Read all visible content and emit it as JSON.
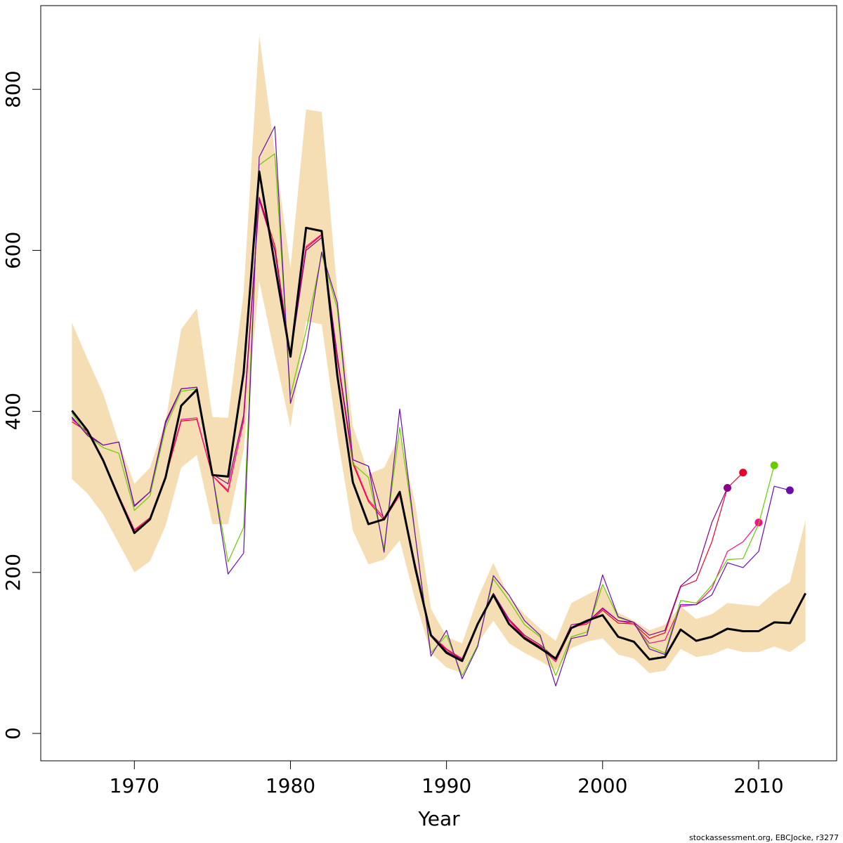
{
  "chart_data": {
    "type": "line",
    "title": "",
    "xlabel": "Year",
    "ylabel": "",
    "xlim": [
      1964,
      2015
    ],
    "ylim": [
      -34,
      904
    ],
    "x_ticks": [
      1970,
      1980,
      1990,
      2000,
      2010
    ],
    "y_ticks": [
      0,
      200,
      400,
      600,
      800
    ],
    "grid": false,
    "legend": "none",
    "credit": "stockassessment.org, EBCJocke, r3277",
    "band": {
      "color": "#f5deb3",
      "x": [
        1966,
        1967,
        1968,
        1969,
        1970,
        1971,
        1972,
        1973,
        1974,
        1975,
        1976,
        1977,
        1978,
        1979,
        1980,
        1981,
        1982,
        1983,
        1984,
        1985,
        1986,
        1987,
        1988,
        1989,
        1990,
        1991,
        1992,
        1993,
        1994,
        1995,
        1996,
        1997,
        1998,
        1999,
        2000,
        2001,
        2002,
        2003,
        2004,
        2005,
        2006,
        2007,
        2008,
        2009,
        2010,
        2011,
        2012,
        2013
      ],
      "upper": [
        510,
        465,
        422,
        362,
        310,
        330,
        388,
        502,
        528,
        393,
        392,
        548,
        867,
        722,
        578,
        775,
        772,
        548,
        382,
        322,
        330,
        370,
        285,
        155,
        120,
        112,
        168,
        212,
        170,
        148,
        130,
        115,
        162,
        172,
        182,
        150,
        140,
        128,
        135,
        158,
        142,
        148,
        162,
        160,
        158,
        175,
        188,
        265
      ],
      "lower": [
        316,
        298,
        272,
        236,
        200,
        214,
        258,
        330,
        346,
        260,
        260,
        352,
        562,
        470,
        380,
        512,
        508,
        370,
        252,
        210,
        216,
        240,
        165,
        100,
        82,
        75,
        112,
        140,
        112,
        100,
        90,
        78,
        106,
        114,
        118,
        98,
        93,
        75,
        78,
        105,
        95,
        98,
        106,
        101,
        101,
        108,
        101,
        115
      ]
    },
    "series": [
      {
        "color": "#000000",
        "width": 3,
        "points": [
          [
            1966,
            401
          ],
          [
            1967,
            376
          ],
          [
            1968,
            339
          ],
          [
            1969,
            293
          ],
          [
            1970,
            249
          ],
          [
            1971,
            266
          ],
          [
            1972,
            318
          ],
          [
            1973,
            407
          ],
          [
            1974,
            427
          ],
          [
            1975,
            321
          ],
          [
            1976,
            319
          ],
          [
            1977,
            448
          ],
          [
            1978,
            698
          ],
          [
            1979,
            582
          ],
          [
            1980,
            468
          ],
          [
            1981,
            628
          ],
          [
            1982,
            624
          ],
          [
            1983,
            445
          ],
          [
            1984,
            312
          ],
          [
            1985,
            260
          ],
          [
            1986,
            266
          ],
          [
            1987,
            300
          ],
          [
            1988,
            205
          ],
          [
            1989,
            122
          ],
          [
            1990,
            100
          ],
          [
            1991,
            90
          ],
          [
            1992,
            136
          ],
          [
            1993,
            172
          ],
          [
            1994,
            136
          ],
          [
            1995,
            118
          ],
          [
            1996,
            106
          ],
          [
            1997,
            93
          ],
          [
            1998,
            131
          ],
          [
            1999,
            140
          ],
          [
            2000,
            147
          ],
          [
            2001,
            120
          ],
          [
            2002,
            114
          ],
          [
            2003,
            92
          ],
          [
            2004,
            95
          ],
          [
            2005,
            129
          ],
          [
            2006,
            115
          ],
          [
            2007,
            120
          ],
          [
            2008,
            130
          ],
          [
            2009,
            127
          ],
          [
            2010,
            127
          ],
          [
            2011,
            138
          ],
          [
            2012,
            137
          ],
          [
            2013,
            174
          ]
        ]
      },
      {
        "color": "#e8002b",
        "width": 1.2,
        "points": [
          [
            1966,
            387
          ],
          [
            1967,
            375
          ],
          [
            1968,
            340
          ],
          [
            1969,
            295
          ],
          [
            1970,
            252
          ],
          [
            1971,
            266
          ],
          [
            1972,
            318
          ],
          [
            1973,
            388
          ],
          [
            1974,
            390
          ],
          [
            1975,
            320
          ],
          [
            1976,
            300
          ],
          [
            1977,
            390
          ],
          [
            1978,
            666
          ],
          [
            1979,
            606
          ],
          [
            1980,
            468
          ],
          [
            1981,
            603
          ],
          [
            1982,
            619
          ],
          [
            1983,
            465
          ],
          [
            1984,
            335
          ],
          [
            1985,
            288
          ],
          [
            1986,
            265
          ],
          [
            1987,
            296
          ],
          [
            1988,
            206
          ],
          [
            1989,
            122
          ],
          [
            1990,
            104
          ],
          [
            1991,
            92
          ],
          [
            1992,
            135
          ],
          [
            1993,
            172
          ],
          [
            1994,
            142
          ],
          [
            1995,
            120
          ],
          [
            1996,
            108
          ],
          [
            1997,
            91
          ],
          [
            1998,
            132
          ],
          [
            1999,
            136
          ],
          [
            2000,
            153
          ],
          [
            2001,
            137
          ],
          [
            2002,
            136
          ],
          [
            2003,
            118
          ],
          [
            2004,
            125
          ],
          [
            2005,
            182
          ],
          [
            2006,
            190
          ],
          [
            2007,
            238
          ],
          [
            2008,
            305
          ],
          [
            2009,
            324
          ]
        ],
        "endpoint": [
          2009,
          324
        ]
      },
      {
        "color": "#ff0a8a",
        "width": 1.2,
        "points": [
          [
            1966,
            390
          ],
          [
            1967,
            375
          ],
          [
            1968,
            340
          ],
          [
            1969,
            295
          ],
          [
            1970,
            253
          ],
          [
            1971,
            268
          ],
          [
            1972,
            320
          ],
          [
            1973,
            390
          ],
          [
            1974,
            392
          ],
          [
            1975,
            320
          ],
          [
            1976,
            302
          ],
          [
            1977,
            388
          ],
          [
            1978,
            662
          ],
          [
            1979,
            600
          ],
          [
            1980,
            470
          ],
          [
            1981,
            605
          ],
          [
            1982,
            620
          ],
          [
            1983,
            468
          ],
          [
            1984,
            338
          ],
          [
            1985,
            290
          ],
          [
            1986,
            268
          ],
          [
            1987,
            296
          ],
          [
            1988,
            208
          ],
          [
            1989,
            123
          ],
          [
            1990,
            105
          ],
          [
            1991,
            93
          ],
          [
            1992,
            136
          ],
          [
            1993,
            174
          ],
          [
            1994,
            140
          ],
          [
            1995,
            119
          ],
          [
            1996,
            107
          ],
          [
            1997,
            89
          ],
          [
            1998,
            130
          ],
          [
            1999,
            138
          ],
          [
            2000,
            156
          ],
          [
            2001,
            140
          ],
          [
            2002,
            136
          ],
          [
            2003,
            112
          ],
          [
            2004,
            116
          ],
          [
            2005,
            158
          ],
          [
            2006,
            160
          ],
          [
            2007,
            180
          ],
          [
            2008,
            226
          ],
          [
            2009,
            238
          ],
          [
            2010,
            262
          ]
        ],
        "endpoint": [
          2010,
          262
        ]
      },
      {
        "color": "#8b008b",
        "width": 1.2,
        "points": [
          [
            1966,
            392
          ],
          [
            1967,
            372
          ],
          [
            1968,
            358
          ],
          [
            1969,
            362
          ],
          [
            1970,
            283
          ],
          [
            1971,
            300
          ],
          [
            1972,
            388
          ],
          [
            1973,
            428
          ],
          [
            1974,
            430
          ],
          [
            1975,
            322
          ],
          [
            1976,
            310
          ],
          [
            1977,
            395
          ],
          [
            1978,
            665
          ],
          [
            1979,
            600
          ],
          [
            1980,
            468
          ],
          [
            1981,
            600
          ],
          [
            1982,
            616
          ],
          [
            1983,
            470
          ],
          [
            1984,
            340
          ],
          [
            1985,
            332
          ],
          [
            1986,
            265
          ],
          [
            1987,
            300
          ],
          [
            1988,
            210
          ],
          [
            1989,
            123
          ],
          [
            1990,
            102
          ],
          [
            1991,
            92
          ],
          [
            1992,
            136
          ],
          [
            1993,
            174
          ],
          [
            1994,
            142
          ],
          [
            1995,
            122
          ],
          [
            1996,
            110
          ],
          [
            1997,
            93
          ],
          [
            1998,
            135
          ],
          [
            1999,
            138
          ],
          [
            2000,
            155
          ],
          [
            2001,
            140
          ],
          [
            2002,
            138
          ],
          [
            2003,
            122
          ],
          [
            2004,
            128
          ],
          [
            2005,
            183
          ],
          [
            2006,
            200
          ],
          [
            2007,
            262
          ],
          [
            2008,
            305
          ]
        ],
        "endpoint": [
          2008,
          305
        ]
      },
      {
        "color": "#66cc00",
        "width": 1.2,
        "points": [
          [
            1966,
            398
          ],
          [
            1967,
            370
          ],
          [
            1968,
            355
          ],
          [
            1969,
            348
          ],
          [
            1970,
            277
          ],
          [
            1971,
            295
          ],
          [
            1972,
            380
          ],
          [
            1973,
            425
          ],
          [
            1974,
            428
          ],
          [
            1975,
            322
          ],
          [
            1976,
            213
          ],
          [
            1977,
            256
          ],
          [
            1978,
            706
          ],
          [
            1979,
            720
          ],
          [
            1980,
            420
          ],
          [
            1981,
            500
          ],
          [
            1982,
            595
          ],
          [
            1983,
            528
          ],
          [
            1984,
            335
          ],
          [
            1985,
            318
          ],
          [
            1986,
            230
          ],
          [
            1987,
            380
          ],
          [
            1988,
            245
          ],
          [
            1989,
            100
          ],
          [
            1990,
            122
          ],
          [
            1991,
            72
          ],
          [
            1992,
            110
          ],
          [
            1993,
            192
          ],
          [
            1994,
            165
          ],
          [
            1995,
            135
          ],
          [
            1996,
            120
          ],
          [
            1997,
            72
          ],
          [
            1998,
            120
          ],
          [
            1999,
            126
          ],
          [
            2000,
            185
          ],
          [
            2001,
            144
          ],
          [
            2002,
            138
          ],
          [
            2003,
            108
          ],
          [
            2004,
            100
          ],
          [
            2005,
            165
          ],
          [
            2006,
            162
          ],
          [
            2007,
            184
          ],
          [
            2008,
            216
          ],
          [
            2009,
            217
          ],
          [
            2010,
            260
          ],
          [
            2011,
            333
          ]
        ],
        "endpoint": [
          2011,
          333
        ]
      },
      {
        "color": "#6a0dad",
        "width": 1.2,
        "points": [
          [
            1966,
            393
          ],
          [
            1967,
            370
          ],
          [
            1968,
            358
          ],
          [
            1969,
            362
          ],
          [
            1970,
            282
          ],
          [
            1971,
            300
          ],
          [
            1972,
            385
          ],
          [
            1973,
            428
          ],
          [
            1974,
            430
          ],
          [
            1975,
            322
          ],
          [
            1976,
            198
          ],
          [
            1977,
            224
          ],
          [
            1978,
            716
          ],
          [
            1979,
            754
          ],
          [
            1980,
            410
          ],
          [
            1981,
            478
          ],
          [
            1982,
            598
          ],
          [
            1983,
            535
          ],
          [
            1984,
            340
          ],
          [
            1985,
            332
          ],
          [
            1986,
            225
          ],
          [
            1987,
            403
          ],
          [
            1988,
            245
          ],
          [
            1989,
            96
          ],
          [
            1990,
            128
          ],
          [
            1991,
            68
          ],
          [
            1992,
            108
          ],
          [
            1993,
            196
          ],
          [
            1994,
            172
          ],
          [
            1995,
            140
          ],
          [
            1996,
            122
          ],
          [
            1997,
            59
          ],
          [
            1998,
            118
          ],
          [
            1999,
            122
          ],
          [
            2000,
            197
          ],
          [
            2001,
            145
          ],
          [
            2002,
            138
          ],
          [
            2003,
            105
          ],
          [
            2004,
            98
          ],
          [
            2005,
            160
          ],
          [
            2006,
            160
          ],
          [
            2007,
            172
          ],
          [
            2008,
            212
          ],
          [
            2009,
            206
          ],
          [
            2010,
            226
          ],
          [
            2011,
            307
          ],
          [
            2012,
            302
          ]
        ],
        "endpoint": [
          2012,
          302
        ]
      }
    ]
  }
}
